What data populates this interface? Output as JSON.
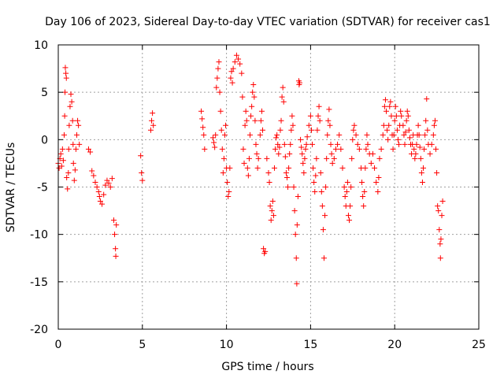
{
  "chart_data": {
    "type": "scatter",
    "title": "Day 106 of 2023, Sidereal Day-to-day VTEC variation (SDTVAR) for receiver cas1",
    "xlabel": "GPS time / hours",
    "ylabel": "SDTVAR / TECUs",
    "xlim": [
      0,
      25
    ],
    "ylim": [
      -20,
      10
    ],
    "xticks": [
      0,
      5,
      10,
      15,
      20,
      25
    ],
    "yticks": [
      -20,
      -15,
      -10,
      -5,
      0,
      5,
      10
    ],
    "grid": true,
    "marker": "plus",
    "color": "#ff0000",
    "series": [
      {
        "name": "SDTVAR",
        "points": [
          [
            0.0,
            -2.5
          ],
          [
            0.05,
            -3.0
          ],
          [
            0.1,
            -2.0
          ],
          [
            0.15,
            -1.5
          ],
          [
            0.2,
            -2.8
          ],
          [
            0.25,
            -1.0
          ],
          [
            0.3,
            -2.2
          ],
          [
            0.35,
            0.5
          ],
          [
            0.38,
            2.5
          ],
          [
            0.4,
            5.0
          ],
          [
            0.42,
            7.6
          ],
          [
            0.45,
            7.0
          ],
          [
            0.48,
            6.5
          ],
          [
            0.5,
            -4.0
          ],
          [
            0.55,
            -5.2
          ],
          [
            0.6,
            -3.5
          ],
          [
            0.62,
            -1.0
          ],
          [
            0.65,
            1.5
          ],
          [
            0.7,
            3.5
          ],
          [
            0.75,
            4.8
          ],
          [
            0.8,
            4.0
          ],
          [
            0.85,
            2.0
          ],
          [
            0.88,
            -0.5
          ],
          [
            0.9,
            -2.5
          ],
          [
            0.95,
            -4.3
          ],
          [
            1.0,
            -3.2
          ],
          [
            1.05,
            -1.0
          ],
          [
            1.1,
            0.5
          ],
          [
            1.15,
            2.0
          ],
          [
            1.2,
            1.5
          ],
          [
            1.25,
            -0.5
          ],
          [
            1.8,
            -1.0
          ],
          [
            1.9,
            -1.3
          ],
          [
            2.0,
            -3.3
          ],
          [
            2.1,
            -3.8
          ],
          [
            2.2,
            -4.5
          ],
          [
            2.3,
            -5.0
          ],
          [
            2.4,
            -5.5
          ],
          [
            2.45,
            -6.0
          ],
          [
            2.5,
            -6.5
          ],
          [
            2.6,
            -6.8
          ],
          [
            2.7,
            -5.8
          ],
          [
            2.8,
            -4.8
          ],
          [
            2.9,
            -4.3
          ],
          [
            3.0,
            -4.6
          ],
          [
            3.1,
            -5.0
          ],
          [
            3.2,
            -4.1
          ],
          [
            3.3,
            -8.5
          ],
          [
            3.35,
            -10.0
          ],
          [
            3.4,
            -11.5
          ],
          [
            3.42,
            -12.3
          ],
          [
            3.45,
            -9.0
          ],
          [
            4.9,
            -1.7
          ],
          [
            4.95,
            -3.5
          ],
          [
            5.0,
            -4.3
          ],
          [
            5.5,
            1.0
          ],
          [
            5.55,
            2.0
          ],
          [
            5.6,
            2.8
          ],
          [
            5.65,
            1.5
          ],
          [
            8.5,
            3.0
          ],
          [
            8.55,
            2.2
          ],
          [
            8.6,
            1.3
          ],
          [
            8.65,
            0.5
          ],
          [
            8.7,
            -1.0
          ],
          [
            9.2,
            0.2
          ],
          [
            9.25,
            -0.3
          ],
          [
            9.3,
            -0.8
          ],
          [
            9.35,
            0.5
          ],
          [
            9.4,
            5.5
          ],
          [
            9.45,
            6.5
          ],
          [
            9.5,
            7.5
          ],
          [
            9.55,
            8.2
          ],
          [
            9.6,
            5.0
          ],
          [
            9.65,
            3.0
          ],
          [
            9.7,
            1.0
          ],
          [
            9.75,
            -1.0
          ],
          [
            9.8,
            -3.5
          ],
          [
            9.85,
            -2.0
          ],
          [
            9.9,
            0.5
          ],
          [
            9.95,
            1.5
          ],
          [
            10.0,
            -3.0
          ],
          [
            10.05,
            -4.5
          ],
          [
            10.1,
            -6.0
          ],
          [
            10.15,
            -5.5
          ],
          [
            10.2,
            -3.0
          ],
          [
            10.25,
            6.5
          ],
          [
            10.3,
            7.2
          ],
          [
            10.35,
            6.0
          ],
          [
            10.4,
            7.5
          ],
          [
            10.5,
            8.2
          ],
          [
            10.6,
            8.9
          ],
          [
            10.7,
            8.5
          ],
          [
            10.8,
            8.0
          ],
          [
            10.9,
            7.0
          ],
          [
            10.95,
            4.5
          ],
          [
            11.0,
            -1.0
          ],
          [
            11.05,
            -2.5
          ],
          [
            11.1,
            1.5
          ],
          [
            11.15,
            3.0
          ],
          [
            11.2,
            2.0
          ],
          [
            11.25,
            -3.0
          ],
          [
            11.3,
            -3.8
          ],
          [
            11.35,
            -2.0
          ],
          [
            11.4,
            0.5
          ],
          [
            11.45,
            2.5
          ],
          [
            11.5,
            3.5
          ],
          [
            11.55,
            5.0
          ],
          [
            11.6,
            5.8
          ],
          [
            11.65,
            4.5
          ],
          [
            11.7,
            2.0
          ],
          [
            11.75,
            -0.5
          ],
          [
            11.8,
            -1.5
          ],
          [
            11.85,
            -3.0
          ],
          [
            11.9,
            -2.0
          ],
          [
            12.0,
            0.5
          ],
          [
            12.05,
            2.0
          ],
          [
            12.1,
            3.0
          ],
          [
            12.15,
            1.0
          ],
          [
            12.2,
            -11.5
          ],
          [
            12.25,
            -12.0
          ],
          [
            12.3,
            -11.8
          ],
          [
            12.4,
            -2.0
          ],
          [
            12.5,
            -3.5
          ],
          [
            12.55,
            -4.5
          ],
          [
            12.6,
            -7.0
          ],
          [
            12.65,
            -8.5
          ],
          [
            12.7,
            -7.5
          ],
          [
            12.75,
            -6.5
          ],
          [
            12.8,
            -8.0
          ],
          [
            12.85,
            -3.0
          ],
          [
            12.9,
            -1.0
          ],
          [
            12.95,
            0.2
          ],
          [
            13.0,
            0.5
          ],
          [
            13.05,
            -0.5
          ],
          [
            13.1,
            -1.5
          ],
          [
            13.15,
            -0.8
          ],
          [
            13.2,
            1.0
          ],
          [
            13.25,
            2.0
          ],
          [
            13.3,
            4.5
          ],
          [
            13.35,
            5.5
          ],
          [
            13.4,
            4.0
          ],
          [
            13.45,
            -0.5
          ],
          [
            13.5,
            -1.8
          ],
          [
            13.55,
            -3.5
          ],
          [
            13.6,
            -4.0
          ],
          [
            13.65,
            -5.0
          ],
          [
            13.7,
            -3.0
          ],
          [
            13.75,
            -1.5
          ],
          [
            13.8,
            -0.5
          ],
          [
            13.85,
            1.0
          ],
          [
            13.9,
            2.5
          ],
          [
            13.95,
            1.5
          ],
          [
            14.0,
            -5.0
          ],
          [
            14.05,
            -7.5
          ],
          [
            14.1,
            -10.0
          ],
          [
            14.15,
            -12.5
          ],
          [
            14.18,
            -15.2
          ],
          [
            14.2,
            -9.0
          ],
          [
            14.25,
            -6.0
          ],
          [
            14.3,
            6.2
          ],
          [
            14.32,
            5.8
          ],
          [
            14.35,
            6.0
          ],
          [
            14.4,
            0.0
          ],
          [
            14.45,
            -0.8
          ],
          [
            14.5,
            -1.5
          ],
          [
            14.55,
            -2.5
          ],
          [
            14.6,
            -3.5
          ],
          [
            14.65,
            -2.0
          ],
          [
            14.7,
            -1.0
          ],
          [
            14.75,
            -0.5
          ],
          [
            14.8,
            0.3
          ],
          [
            14.9,
            1.5
          ],
          [
            15.0,
            2.5
          ],
          [
            15.05,
            1.0
          ],
          [
            15.1,
            -0.5
          ],
          [
            15.15,
            -3.0
          ],
          [
            15.2,
            -4.5
          ],
          [
            15.25,
            -5.5
          ],
          [
            15.3,
            -3.8
          ],
          [
            15.35,
            -2.0
          ],
          [
            15.4,
            1.0
          ],
          [
            15.45,
            2.5
          ],
          [
            15.5,
            3.5
          ],
          [
            15.55,
            2.0
          ],
          [
            15.6,
            -3.5
          ],
          [
            15.65,
            -5.5
          ],
          [
            15.7,
            -7.0
          ],
          [
            15.75,
            -9.5
          ],
          [
            15.8,
            -12.5
          ],
          [
            15.85,
            -8.0
          ],
          [
            15.9,
            -5.0
          ],
          [
            15.95,
            -2.0
          ],
          [
            16.0,
            0.5
          ],
          [
            16.05,
            2.0
          ],
          [
            16.1,
            3.2
          ],
          [
            16.15,
            1.5
          ],
          [
            16.2,
            -0.5
          ],
          [
            16.25,
            -1.5
          ],
          [
            16.3,
            -2.5
          ],
          [
            16.4,
            -2.0
          ],
          [
            16.5,
            -1.0
          ],
          [
            16.6,
            -0.5
          ],
          [
            16.7,
            0.5
          ],
          [
            16.8,
            -1.0
          ],
          [
            16.9,
            -3.0
          ],
          [
            17.0,
            -5.0
          ],
          [
            17.05,
            -6.0
          ],
          [
            17.1,
            -7.0
          ],
          [
            17.15,
            -5.5
          ],
          [
            17.2,
            -4.5
          ],
          [
            17.25,
            -8.0
          ],
          [
            17.3,
            -8.5
          ],
          [
            17.35,
            -7.0
          ],
          [
            17.4,
            -5.0
          ],
          [
            17.45,
            -2.0
          ],
          [
            17.5,
            0.0
          ],
          [
            17.55,
            1.0
          ],
          [
            17.6,
            1.5
          ],
          [
            17.7,
            0.5
          ],
          [
            17.8,
            -0.5
          ],
          [
            17.9,
            -1.0
          ],
          [
            18.0,
            -3.0
          ],
          [
            18.05,
            -4.5
          ],
          [
            18.1,
            -6.0
          ],
          [
            18.15,
            -7.0
          ],
          [
            18.2,
            -5.5
          ],
          [
            18.25,
            -3.0
          ],
          [
            18.3,
            -1.0
          ],
          [
            18.35,
            0.5
          ],
          [
            18.4,
            -0.5
          ],
          [
            18.5,
            -1.5
          ],
          [
            18.6,
            -2.5
          ],
          [
            18.7,
            -1.5
          ],
          [
            18.8,
            -3.0
          ],
          [
            18.9,
            -4.5
          ],
          [
            19.0,
            -5.5
          ],
          [
            19.05,
            -4.0
          ],
          [
            19.1,
            -2.0
          ],
          [
            19.2,
            -1.0
          ],
          [
            19.3,
            0.5
          ],
          [
            19.35,
            1.5
          ],
          [
            19.4,
            3.5
          ],
          [
            19.45,
            4.2
          ],
          [
            19.5,
            3.0
          ],
          [
            19.55,
            1.0
          ],
          [
            19.6,
            0.0
          ],
          [
            19.65,
            1.5
          ],
          [
            19.7,
            3.5
          ],
          [
            19.75,
            4.0
          ],
          [
            19.8,
            2.5
          ],
          [
            19.85,
            0.5
          ],
          [
            19.9,
            -1.0
          ],
          [
            19.95,
            0.5
          ],
          [
            20.0,
            2.0
          ],
          [
            20.05,
            3.5
          ],
          [
            20.1,
            2.5
          ],
          [
            20.15,
            1.0
          ],
          [
            20.2,
            0.0
          ],
          [
            20.25,
            -0.5
          ],
          [
            20.3,
            1.5
          ],
          [
            20.35,
            3.0
          ],
          [
            20.4,
            2.5
          ],
          [
            20.5,
            1.5
          ],
          [
            20.55,
            0.5
          ],
          [
            20.6,
            -0.5
          ],
          [
            20.65,
            0.8
          ],
          [
            20.7,
            2.0
          ],
          [
            20.75,
            3.0
          ],
          [
            20.8,
            2.5
          ],
          [
            20.85,
            1.0
          ],
          [
            20.9,
            0.2
          ],
          [
            20.95,
            -0.5
          ],
          [
            21.0,
            -1.5
          ],
          [
            21.05,
            -0.5
          ],
          [
            21.1,
            0.5
          ],
          [
            21.15,
            -1.0
          ],
          [
            21.2,
            -2.0
          ],
          [
            21.25,
            -1.5
          ],
          [
            21.3,
            -0.5
          ],
          [
            21.35,
            0.5
          ],
          [
            21.4,
            1.5
          ],
          [
            21.45,
            0.5
          ],
          [
            21.5,
            -0.8
          ],
          [
            21.55,
            -2.0
          ],
          [
            21.6,
            -3.5
          ],
          [
            21.65,
            -4.5
          ],
          [
            21.7,
            -3.0
          ],
          [
            21.75,
            -1.0
          ],
          [
            21.8,
            0.5
          ],
          [
            21.85,
            2.0
          ],
          [
            21.9,
            4.3
          ],
          [
            21.95,
            1.0
          ],
          [
            22.0,
            -0.5
          ],
          [
            22.1,
            -1.5
          ],
          [
            22.2,
            -0.5
          ],
          [
            22.3,
            0.5
          ],
          [
            22.35,
            1.5
          ],
          [
            22.4,
            2.0
          ],
          [
            22.45,
            -1.0
          ],
          [
            22.5,
            -3.5
          ],
          [
            22.55,
            -7.0
          ],
          [
            22.6,
            -7.5
          ],
          [
            22.65,
            -9.5
          ],
          [
            22.7,
            -11.0
          ],
          [
            22.72,
            -12.5
          ],
          [
            22.75,
            -10.5
          ],
          [
            22.8,
            -8.0
          ],
          [
            22.85,
            -6.5
          ]
        ]
      }
    ]
  }
}
